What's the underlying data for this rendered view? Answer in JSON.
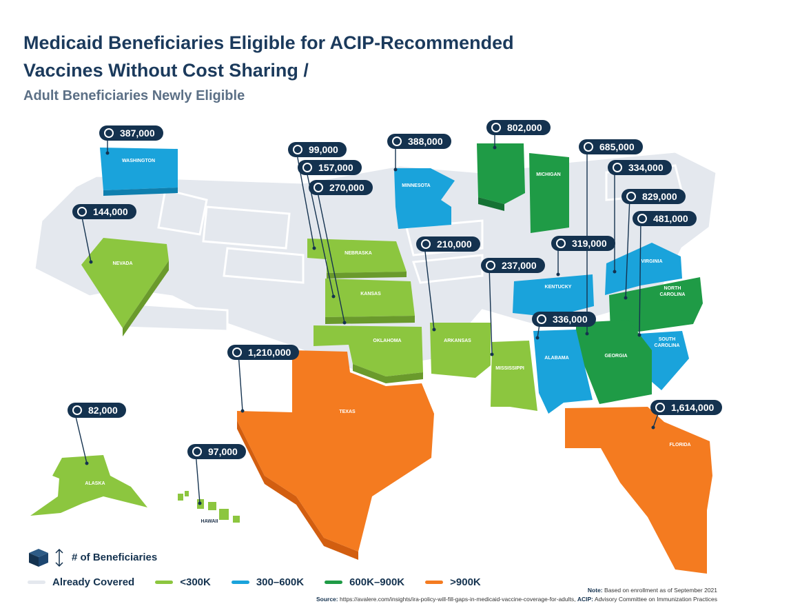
{
  "title_line1": "Medicaid Beneficiaries Eligible for ACIP-Recommended",
  "title_line2": "Vaccines Without Cost Sharing /",
  "subtitle": "Adult Beneficiaries Newly Eligible",
  "states": [
    {
      "name": "WASHINGTON",
      "value": "387,000",
      "category": "300–600K"
    },
    {
      "name": "NEVADA",
      "value": "144,000",
      "category": "<300K"
    },
    {
      "name": "NEBRASKA",
      "value": "99,000",
      "category": "<300K"
    },
    {
      "name": "KANSAS",
      "value": "157,000",
      "category": "<300K"
    },
    {
      "name": "OKLAHOMA",
      "value": "270,000",
      "category": "<300K"
    },
    {
      "name": "MINNESOTA",
      "value": "388,000",
      "category": "300–600K"
    },
    {
      "name": "MICHIGAN",
      "value": "802,000",
      "category": "600K–900K"
    },
    {
      "name": "ARKANSAS",
      "value": "210,000",
      "category": "<300K"
    },
    {
      "name": "MISSISSIPPI",
      "value": "237,000",
      "category": "<300K"
    },
    {
      "name": "KENTUCKY",
      "value": "319,000",
      "category": "300–600K"
    },
    {
      "name": "VIRGINIA",
      "value": "334,000",
      "category": "300–600K"
    },
    {
      "name": "NORTH CAROLINA",
      "value": "829,000",
      "category": "600K–900K"
    },
    {
      "name": "SOUTH CAROLINA",
      "value": "481,000",
      "category": "300–600K"
    },
    {
      "name": "GEORGIA",
      "value": "685,000",
      "category": "600K–900K"
    },
    {
      "name": "ALABAMA",
      "value": "336,000",
      "category": "300–600K"
    },
    {
      "name": "TEXAS",
      "value": "1,210,000",
      "category": ">900K"
    },
    {
      "name": "FLORIDA",
      "value": "1,614,000",
      "category": ">900K"
    },
    {
      "name": "ALASKA",
      "value": "82,000",
      "category": "<300K"
    },
    {
      "name": "HAWAII",
      "value": "97,000",
      "category": "<300K"
    }
  ],
  "legend": {
    "height_label": "# of Beneficiaries",
    "items": [
      {
        "label": "Already Covered",
        "color": "#e4e8ee"
      },
      {
        "label": "<300K",
        "color": "#8cc63f"
      },
      {
        "label": "300–600K",
        "color": "#1aa3db"
      },
      {
        "label": "600K–900K",
        "color": "#1f9b46"
      },
      {
        "label": ">900K",
        "color": "#f47b20"
      }
    ]
  },
  "note_label": "Note:",
  "note_text": "Based on enrollment as of September 2021",
  "source_label": "Source:",
  "source_text": "https://avalere.com/insights/ira-policy-will-fill-gaps-in-medicaid-vaccine-coverage-for-adults,",
  "acip_label": "ACIP:",
  "acip_text": "Advisory Committee on Immunization Practices",
  "colors": {
    "navy": "#14324f",
    "lt300": "#8cc63f",
    "b300_600": "#1aa3db",
    "b600_900": "#1f9b46",
    "gt900": "#f47b20",
    "covered": "#e4e8ee"
  }
}
